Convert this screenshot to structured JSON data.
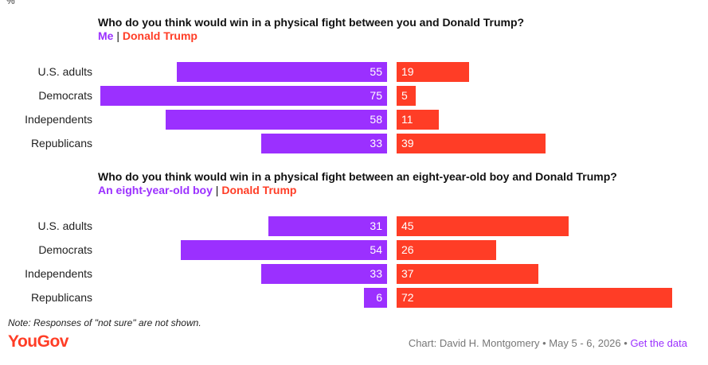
{
  "header": {
    "unit_mark": "%"
  },
  "chart_data": [
    {
      "type": "bar",
      "title": "Who do you think would win in a physical fight between you and Donald Trump?",
      "categories": [
        "U.S. adults",
        "Democrats",
        "Independents",
        "Republicans"
      ],
      "series": [
        {
          "name": "Me",
          "values": [
            55,
            75,
            58,
            33
          ],
          "color": "#9b30ff"
        },
        {
          "name": "Donald Trump",
          "values": [
            19,
            5,
            11,
            39
          ],
          "color": "#ff3d26"
        }
      ]
    },
    {
      "type": "bar",
      "title": "Who do you think would win in a physical fight between an eight-year-old boy and Donald Trump?",
      "categories": [
        "U.S. adults",
        "Democrats",
        "Independents",
        "Republicans"
      ],
      "series": [
        {
          "name": "An eight-year-old boy",
          "values": [
            31,
            54,
            33,
            6
          ],
          "color": "#9b30ff"
        },
        {
          "name": "Donald Trump",
          "values": [
            45,
            26,
            37,
            72
          ],
          "color": "#ff3d26"
        }
      ]
    }
  ],
  "footer": {
    "note": "Note: Responses of \"not sure\" are not shown.",
    "logo": "YouGov",
    "credit": "Chart: David H. Montgomery • May 5 - 6, 2026 •",
    "link": "Get the data"
  }
}
